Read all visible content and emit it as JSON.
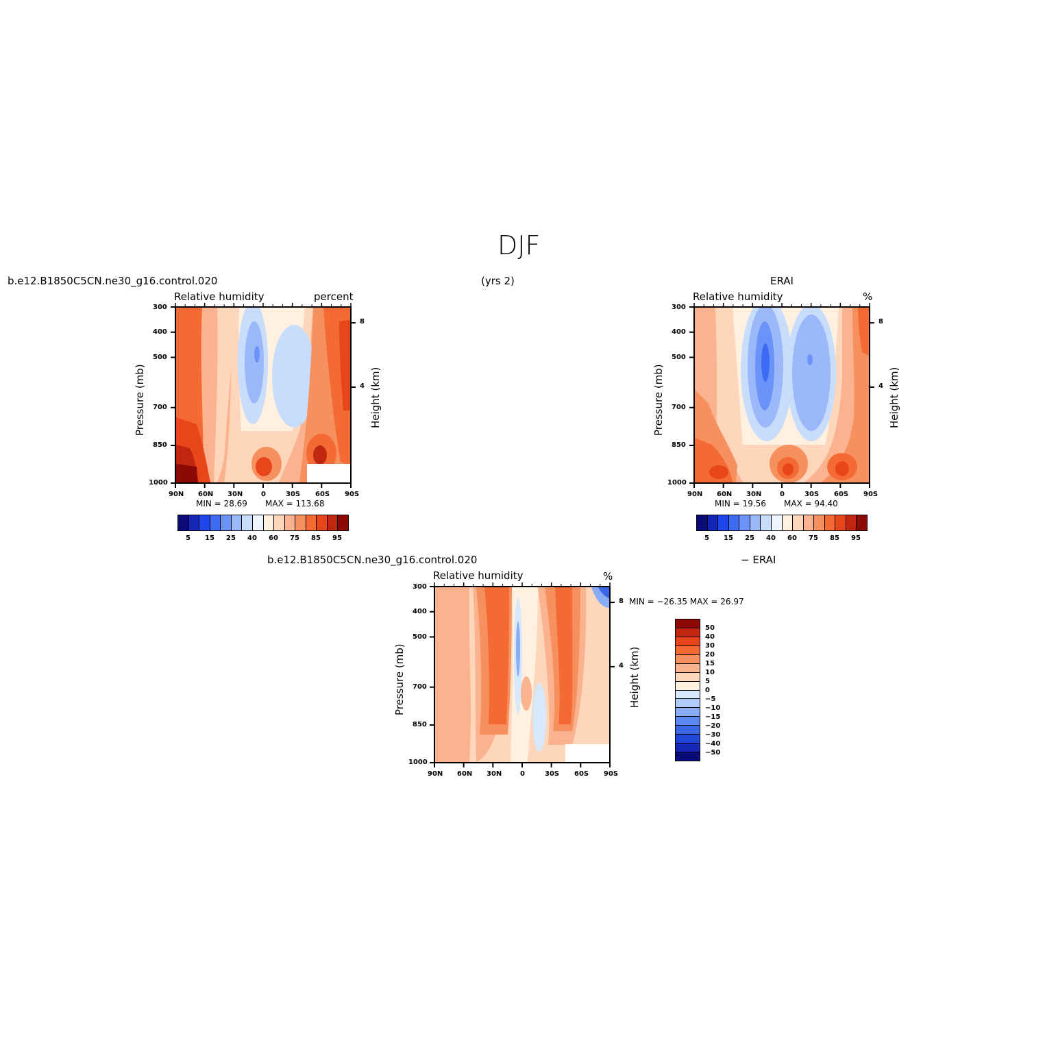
{
  "page": {
    "title": "DJF",
    "years": "(yrs 2)"
  },
  "colors": {
    "levels": [
      "#0a0a78",
      "#1328b4",
      "#1f46e8",
      "#3c6cf4",
      "#6a92f8",
      "#9ab8fa",
      "#c8dcfc",
      "#eef4ff",
      "#fff0e0",
      "#fdd6bc",
      "#fbb38f",
      "#f7905f",
      "#f36b33",
      "#e8461a",
      "#c0270f",
      "#8c0a05"
    ],
    "diff_levels": [
      "#8c0a05",
      "#c0270f",
      "#e8461a",
      "#f36b33",
      "#f7905f",
      "#fbb38f",
      "#fdd6bc",
      "#fff0e0",
      "#d6e8fc",
      "#b0ccfa",
      "#88acf6",
      "#5c88f2",
      "#3a66e8",
      "#1f46d8",
      "#1328b4",
      "#0a0a78"
    ]
  },
  "chart_data": [
    {
      "type": "heatmap",
      "case_name": "b.e12.B1850C5CN.ne30_g16.control.020",
      "variable": "Relative humidity",
      "units": "percent",
      "ylabel": "Pressure (mb)",
      "ylabel_right": "Height (km)",
      "x_ticks": [
        "90N",
        "60N",
        "30N",
        "0",
        "30S",
        "60S",
        "90S"
      ],
      "y_ticks": [
        "300",
        "400",
        "500",
        "700",
        "850",
        "1000"
      ],
      "y_right_ticks": [
        "8",
        "4"
      ],
      "min_label": "MIN =   28.69",
      "max_label": "MAX = 113.68",
      "colorbar_ticks": [
        "5",
        "15",
        "25",
        "40",
        "60",
        "75",
        "85",
        "95"
      ]
    },
    {
      "type": "heatmap",
      "case_name": "ERAI",
      "variable": "Relative humidity",
      "units": "%",
      "ylabel": "Pressure (mb)",
      "ylabel_right": "Height (km)",
      "x_ticks": [
        "90N",
        "60N",
        "30N",
        "0",
        "30S",
        "60S",
        "90S"
      ],
      "y_ticks": [
        "300",
        "400",
        "500",
        "700",
        "850",
        "1000"
      ],
      "y_right_ticks": [
        "8",
        "4"
      ],
      "min_label": "MIN =   19.56",
      "max_label": "MAX =   94.40",
      "colorbar_ticks": [
        "5",
        "15",
        "25",
        "40",
        "60",
        "75",
        "85",
        "95"
      ]
    },
    {
      "type": "heatmap",
      "case_name": "b.e12.B1850C5CN.ne30_g16.control.020",
      "case_name_2": "− ERAI",
      "variable": "Relative humidity",
      "units": "%",
      "ylabel": "Pressure (mb)",
      "ylabel_right": "Height (km)",
      "x_ticks": [
        "90N",
        "60N",
        "30N",
        "0",
        "30S",
        "60S",
        "90S"
      ],
      "y_ticks": [
        "300",
        "400",
        "500",
        "700",
        "850",
        "1000"
      ],
      "y_right_ticks": [
        "8",
        "4"
      ],
      "minmax_label": "MIN = −26.35   MAX =   26.97",
      "colorbar_ticks": [
        "50",
        "40",
        "30",
        "20",
        "15",
        "10",
        "5",
        "0",
        "−5",
        "−10",
        "−15",
        "−20",
        "−30",
        "−40",
        "−50"
      ]
    }
  ]
}
